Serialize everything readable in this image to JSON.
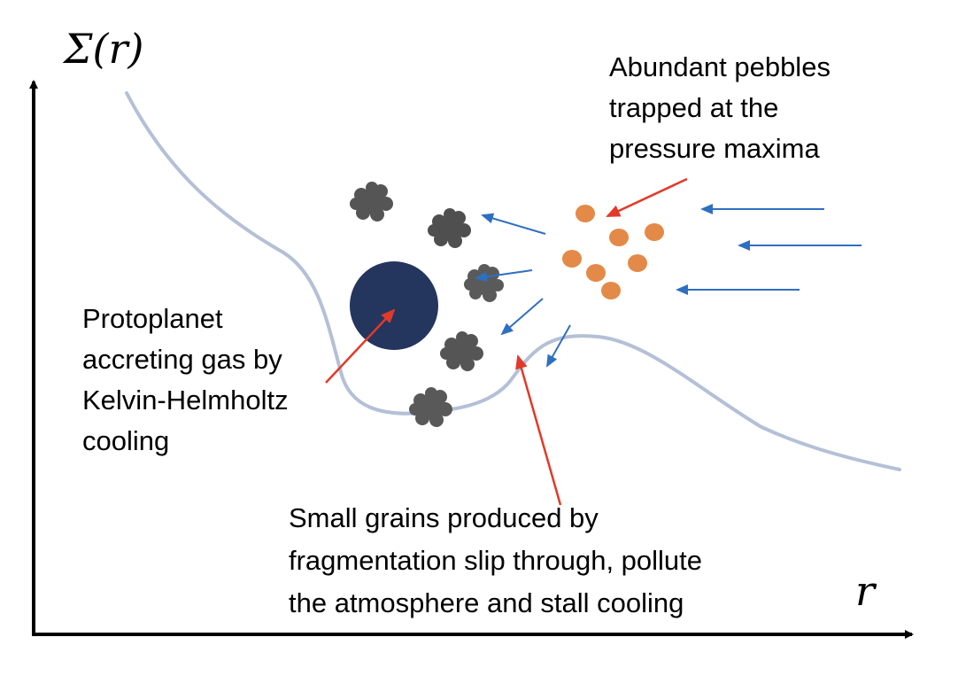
{
  "axes": {
    "y_label": "Σ(r)",
    "x_label": "r"
  },
  "labels": {
    "pebbles": [
      "Abundant pebbles",
      "trapped at the",
      "pressure maxima"
    ],
    "protoplanet": [
      "Protoplanet",
      "accreting gas by",
      "Kelvin-Helmholtz",
      "cooling"
    ],
    "grains": [
      "Small grains produced by",
      "fragmentation slip through, pollute",
      "the atmosphere and stall cooling"
    ]
  },
  "colors": {
    "curve": "#b4c0d6",
    "protoplanet": "#24355e",
    "pebble": "#e38a48",
    "clump": "#555555",
    "blue_arrow": "#2f6fc0",
    "red_arrow": "#e03a2a",
    "axis": "#000000"
  }
}
